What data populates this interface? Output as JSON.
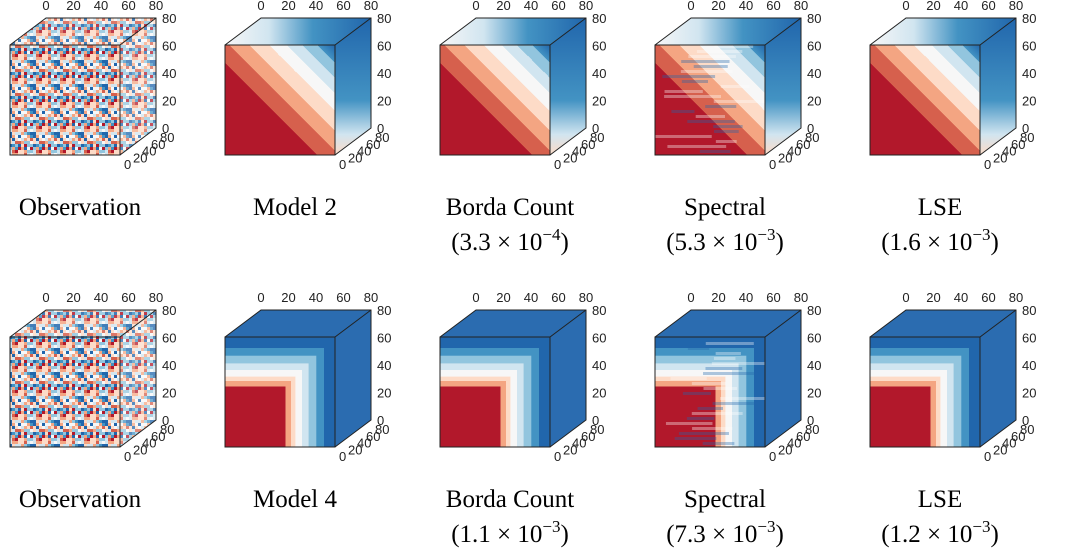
{
  "ticks": [
    "0",
    "20",
    "40",
    "60",
    "80"
  ],
  "rows": [
    {
      "panels": [
        {
          "caption": "Observation"
        },
        {
          "caption": "Model 2"
        },
        {
          "caption": "Borda Count",
          "error": {
            "open": "(3.3 × 10",
            "exponent": "−4",
            "close": ")"
          }
        },
        {
          "caption": "Spectral",
          "error": {
            "open": "(5.3 × 10",
            "exponent": "−3",
            "close": ")"
          }
        },
        {
          "caption": "LSE",
          "error": {
            "open": "(1.6 × 10",
            "exponent": "−3",
            "close": ")"
          }
        }
      ]
    },
    {
      "panels": [
        {
          "caption": "Observation"
        },
        {
          "caption": "Model 4"
        },
        {
          "caption": "Borda Count",
          "error": {
            "open": "(1.1 × 10",
            "exponent": "−3",
            "close": ")"
          }
        },
        {
          "caption": "Spectral",
          "error": {
            "open": "(7.3 × 10",
            "exponent": "−3",
            "close": ")"
          }
        },
        {
          "caption": "LSE",
          "error": {
            "open": "(1.2 × 10",
            "exponent": "−3",
            "close": ")"
          }
        }
      ]
    }
  ]
}
